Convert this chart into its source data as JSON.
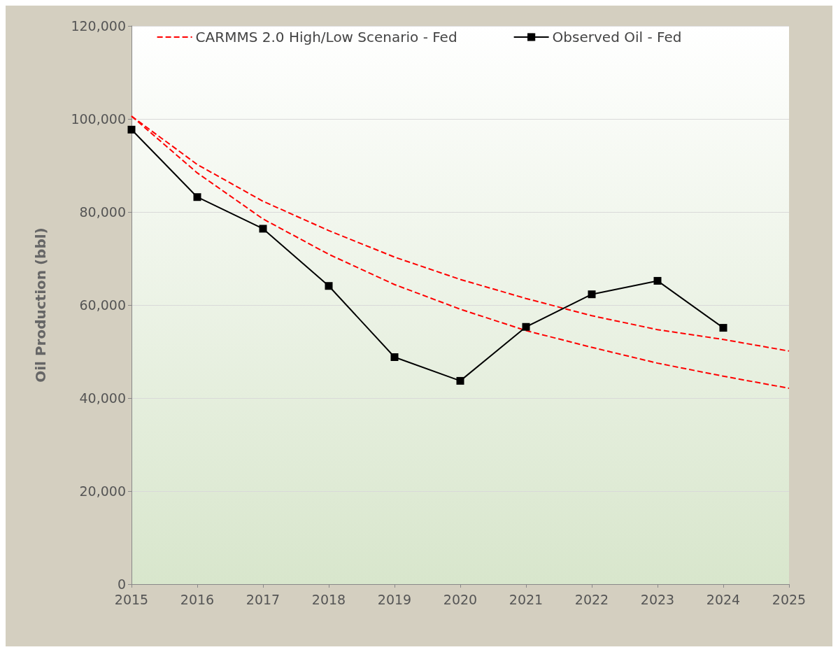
{
  "chart_data": {
    "type": "line",
    "ylabel": "Oil Production (bbl)",
    "xlim": [
      2015,
      2025
    ],
    "xticks": [
      2015,
      2016,
      2017,
      2018,
      2019,
      2020,
      2021,
      2022,
      2023,
      2024,
      2025
    ],
    "ylim": [
      0,
      120000
    ],
    "yticks": [
      0,
      {
        "value": 20000,
        "label": "20,000"
      },
      {
        "value": 40000,
        "label": "40,000"
      },
      {
        "value": 60000,
        "label": "60,000"
      },
      {
        "value": 80000,
        "label": "80,000"
      },
      {
        "value": 100000,
        "label": "100,000"
      },
      {
        "value": 120000,
        "label": "120,000"
      }
    ],
    "grid": "y",
    "legend": "top",
    "series": [
      {
        "name": "CARMMS 2.0 High/Low Scenario - Fed",
        "color": "#ff0000",
        "line_style": "dashed",
        "marker": "none",
        "x": [
          2015,
          2016,
          2017,
          2018,
          2019,
          2020,
          2021,
          2022,
          2023,
          2024,
          2025
        ],
        "values": [
          100600,
          90200,
          82300,
          76000,
          70300,
          65500,
          61400,
          57700,
          54700,
          52600,
          50100
        ]
      },
      {
        "color": "#ff0000",
        "line_style": "dashed",
        "marker": "none",
        "x": [
          2015,
          2016,
          2017,
          2018,
          2019,
          2020,
          2021,
          2022,
          2023,
          2024,
          2025
        ],
        "values": [
          100600,
          88400,
          78500,
          70900,
          64400,
          59100,
          54500,
          50900,
          47500,
          44700,
          42100
        ]
      },
      {
        "name": "Observed Oil - Fed",
        "color": "#000000",
        "line_style": "solid",
        "marker": "square",
        "x": [
          2015,
          2016,
          2017,
          2018,
          2019,
          2020,
          2021,
          2022,
          2023,
          2024
        ],
        "values": [
          97700,
          83200,
          76400,
          64100,
          48800,
          43700,
          55300,
          62300,
          65200,
          55100
        ]
      }
    ]
  }
}
